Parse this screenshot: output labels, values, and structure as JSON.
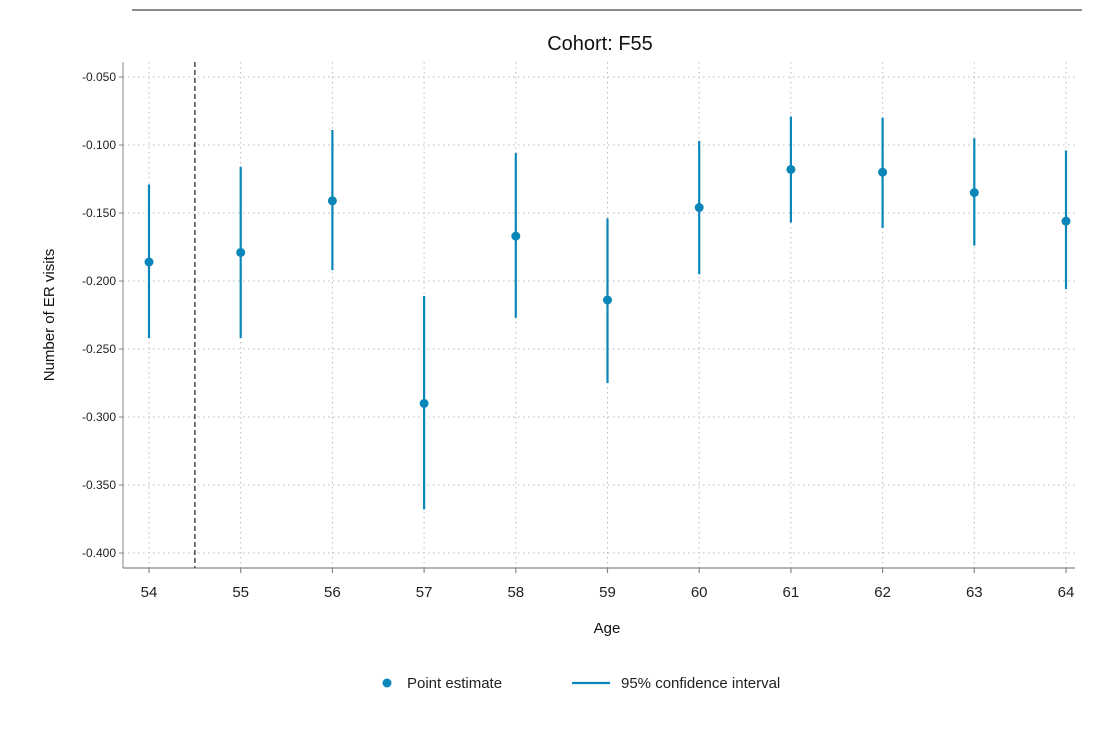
{
  "chart_data": {
    "type": "scatter",
    "title": "Cohort: F55",
    "xlabel": "Age",
    "ylabel": "Number of ER visits",
    "x": [
      54,
      55,
      56,
      57,
      58,
      59,
      60,
      61,
      62,
      63,
      64
    ],
    "x_ticks": [
      "54",
      "55",
      "56",
      "57",
      "58",
      "59",
      "60",
      "61",
      "62",
      "63",
      "64"
    ],
    "y_ticks": [
      "-0.050",
      "-0.100",
      "-0.150",
      "-0.200",
      "-0.250",
      "-0.300",
      "-0.350",
      "-0.400"
    ],
    "ylim": [
      -0.4,
      -0.05
    ],
    "xlim": [
      54,
      64
    ],
    "reference_line_x": 54.5,
    "grid": true,
    "legend_position": "bottom",
    "series": [
      {
        "name": "Point estimate",
        "values": [
          -0.186,
          -0.179,
          -0.141,
          -0.29,
          -0.167,
          -0.214,
          -0.146,
          -0.118,
          -0.12,
          -0.135,
          -0.156
        ]
      },
      {
        "name": "95% confidence interval",
        "lower": [
          -0.242,
          -0.242,
          -0.192,
          -0.368,
          -0.227,
          -0.275,
          -0.195,
          -0.157,
          -0.161,
          -0.174,
          -0.206
        ],
        "upper": [
          -0.129,
          -0.116,
          -0.089,
          -0.211,
          -0.106,
          -0.154,
          -0.097,
          -0.079,
          -0.08,
          -0.095,
          -0.104
        ]
      }
    ],
    "colors": {
      "series": "#0a86b8",
      "axis": "#888888",
      "grid": "#bbbbbb",
      "reference": "#555555"
    }
  }
}
